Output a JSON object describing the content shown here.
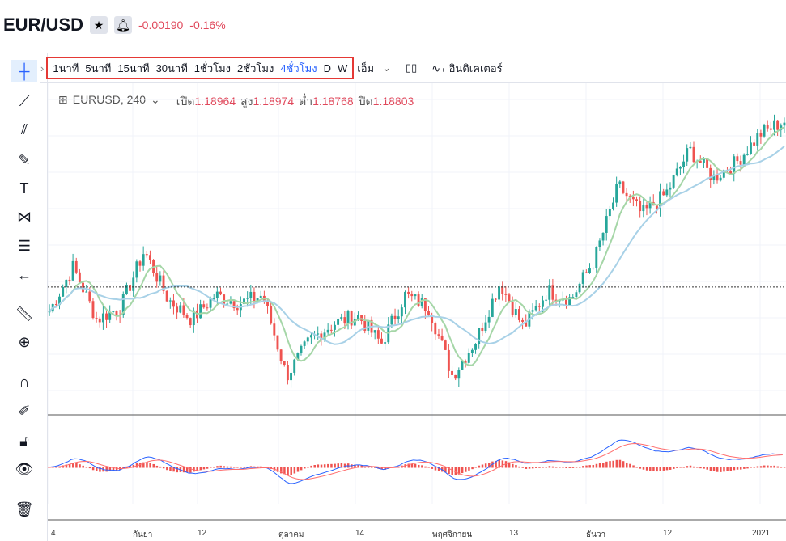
{
  "header": {
    "symbol": "EUR/USD",
    "change": "-0.00190",
    "change_pct": "-0.16%"
  },
  "toolbar": {
    "timeframes": [
      "1นาที",
      "5นาที",
      "15นาที",
      "30นาที",
      "1ชั่วโมง",
      "2ชั่วโมง",
      "4ชั่วโมง",
      "D",
      "W"
    ],
    "active_timeframe": "4ชั่วโมง",
    "more": "เอ็ม",
    "indicators": "อินดิเคเตอร์"
  },
  "legend": {
    "symbol": "EURUSD, 240",
    "open_label": "เปิด",
    "open": "1.18964",
    "high_label": "สูง",
    "high": "1.18974",
    "low_label": "ต่ำ",
    "low": "1.18768",
    "close_label": "ปิด",
    "close": "1.18803"
  },
  "colors": {
    "up": "#26a69a",
    "down": "#ef5350",
    "highlight": "#e53935",
    "accent": "#2962ff"
  },
  "chart_data": {
    "type": "candlestick",
    "x_ticks": [
      "4",
      "กันยา",
      "12",
      "ตุลาคม",
      "14",
      "พฤศจิกายน",
      "13",
      "ธันวา",
      "12",
      "2021"
    ],
    "close_path": [
      1.182,
      1.193,
      1.18,
      1.183,
      1.197,
      1.185,
      1.18,
      1.186,
      1.184,
      1.186,
      1.166,
      1.175,
      1.179,
      1.181,
      1.174,
      1.186,
      1.183,
      1.166,
      1.175,
      1.189,
      1.178,
      1.187,
      1.185,
      1.195,
      1.213,
      1.206,
      1.211,
      1.222,
      1.215,
      1.219,
      1.226,
      1.229
    ],
    "last_price": 1.18803,
    "indicator": "MACD"
  }
}
